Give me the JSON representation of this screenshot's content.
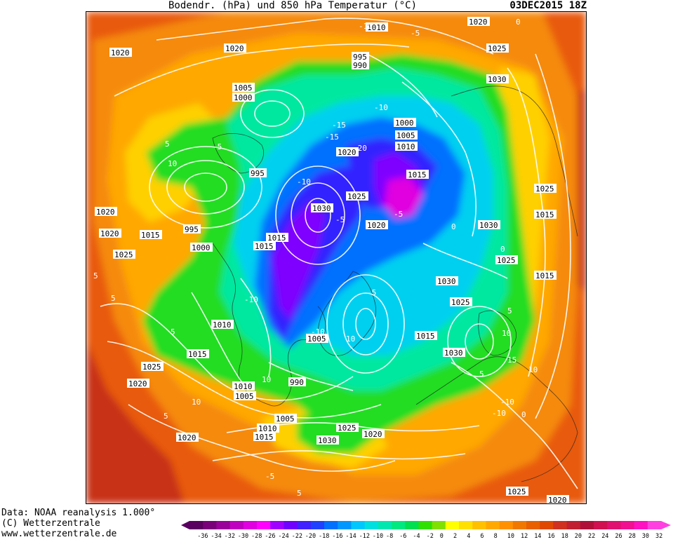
{
  "header": {
    "title": "Bodendr. (hPa) und 850 hPa Temperatur (°C)",
    "datetime": "03DEC2015 18Z"
  },
  "credits": {
    "line1": "Data: NOAA reanalysis 1.000°",
    "line2": "(C) Wetterzentrale",
    "line3": "www.wetterzentrale.de"
  },
  "legend": {
    "ticks": [
      "-36",
      "-34",
      "-32",
      "-30",
      "-28",
      "-26",
      "-24",
      "-22",
      "-20",
      "-18",
      "-16",
      "-14",
      "-12",
      "-10",
      "-8",
      "-6",
      "-4",
      "-2",
      "0",
      "2",
      "4",
      "6",
      "8",
      "10",
      "12",
      "14",
      "16",
      "18",
      "20",
      "22",
      "24",
      "26",
      "28",
      "30",
      "32"
    ],
    "colors": [
      "#5a0060",
      "#7a007a",
      "#9a009a",
      "#c000c0",
      "#e000e0",
      "#ff00ff",
      "#a000ff",
      "#7000ff",
      "#4020ff",
      "#2040ff",
      "#0070ff",
      "#0098ff",
      "#00c8ff",
      "#00e0e0",
      "#00e8b0",
      "#00e880",
      "#00e050",
      "#30e000",
      "#80e000",
      "#ffff00",
      "#ffe000",
      "#ffc000",
      "#ffa800",
      "#ff9000",
      "#f07800",
      "#e86000",
      "#e04800",
      "#d03020",
      "#c02030",
      "#b01038",
      "#d01050",
      "#e01070",
      "#f01090",
      "#ff10c0",
      "#ff40e0"
    ]
  },
  "map": {
    "colors": {
      "warm_bg": "#e85a10",
      "orange": "#f58a10",
      "orange_light": "#ffa800",
      "yellow": "#ffd000",
      "yellow_bright": "#ffff00",
      "green": "#22dd22",
      "green_cyan": "#00e8a0",
      "cyan": "#00d0f0",
      "blue": "#0070ff",
      "blue_deep": "#3020ff",
      "violet": "#8000ff",
      "magenta": "#e000e0",
      "red_dark": "#c83018",
      "contour": "#ffffff"
    },
    "isobar_labels": [
      {
        "text": "1010"
      },
      {
        "text": "1020"
      },
      {
        "text": "1020"
      },
      {
        "text": "1020"
      },
      {
        "text": "995"
      },
      {
        "text": "990"
      },
      {
        "text": "1025"
      },
      {
        "text": "1030"
      },
      {
        "text": "1005"
      },
      {
        "text": "1000"
      },
      {
        "text": "1000"
      },
      {
        "text": "1005"
      },
      {
        "text": "1010"
      },
      {
        "text": "1020"
      },
      {
        "text": "1015"
      },
      {
        "text": "995"
      },
      {
        "text": "1025"
      },
      {
        "text": "1020"
      },
      {
        "text": "1030"
      },
      {
        "text": "1020"
      },
      {
        "text": "1025"
      },
      {
        "text": "1015"
      },
      {
        "text": "1015"
      },
      {
        "text": "995"
      },
      {
        "text": "1000"
      },
      {
        "text": "1025"
      },
      {
        "text": "1015"
      },
      {
        "text": "1030"
      },
      {
        "text": "1015"
      },
      {
        "text": "1025"
      },
      {
        "text": "1020"
      },
      {
        "text": "1015"
      },
      {
        "text": "1030"
      },
      {
        "text": "1025"
      },
      {
        "text": "1010"
      },
      {
        "text": "1005"
      },
      {
        "text": "1015"
      },
      {
        "text": "1030"
      },
      {
        "text": "1015"
      },
      {
        "text": "1025"
      },
      {
        "text": "1020"
      },
      {
        "text": "1010"
      },
      {
        "text": "1005"
      },
      {
        "text": "990"
      },
      {
        "text": "1005"
      },
      {
        "text": "1010"
      },
      {
        "text": "1015"
      },
      {
        "text": "1020"
      },
      {
        "text": "1025"
      },
      {
        "text": "1020"
      },
      {
        "text": "1030"
      },
      {
        "text": "1025"
      },
      {
        "text": "1020"
      }
    ],
    "temp_labels": [
      {
        "text": "-10"
      },
      {
        "text": "-5"
      },
      {
        "text": "0"
      },
      {
        "text": "5"
      },
      {
        "text": "10"
      },
      {
        "text": "-5"
      },
      {
        "text": "-10"
      },
      {
        "text": "-15"
      },
      {
        "text": "-20"
      },
      {
        "text": "-15"
      },
      {
        "text": "-10"
      },
      {
        "text": "-5"
      },
      {
        "text": "0"
      },
      {
        "text": "5"
      },
      {
        "text": "10"
      },
      {
        "text": "15"
      },
      {
        "text": "5"
      },
      {
        "text": "-5"
      },
      {
        "text": "-10"
      },
      {
        "text": "5"
      },
      {
        "text": "10"
      },
      {
        "text": "5"
      },
      {
        "text": "10"
      },
      {
        "text": "0"
      },
      {
        "text": "-5"
      },
      {
        "text": "10"
      },
      {
        "text": "5"
      },
      {
        "text": "-10"
      },
      {
        "text": "-10"
      },
      {
        "text": "5"
      },
      {
        "text": "-5"
      },
      {
        "text": "0"
      },
      {
        "text": "10"
      },
      {
        "text": "-10"
      },
      {
        "text": "5"
      }
    ]
  }
}
